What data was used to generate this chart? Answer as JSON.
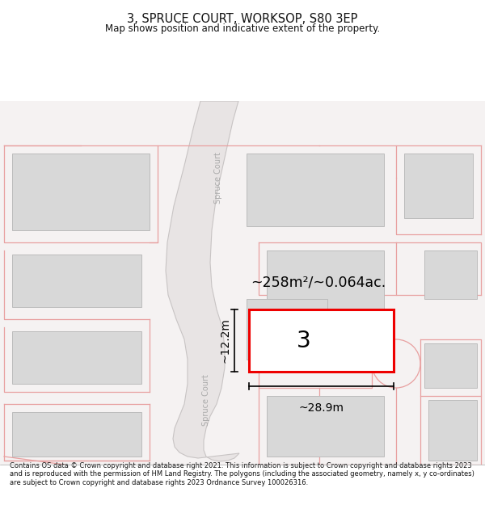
{
  "title": "3, SPRUCE COURT, WORKSOP, S80 3EP",
  "subtitle": "Map shows position and indicative extent of the property.",
  "area_label": "~258m²/~0.064ac.",
  "width_label": "~28.9m",
  "height_label": "~12.2m",
  "plot_number": "3",
  "footer_text": "Contains OS data © Crown copyright and database right 2021. This information is subject to Crown copyright and database rights 2023 and is reproduced with the permission of HM Land Registry. The polygons (including the associated geometry, namely x, y co-ordinates) are subject to Crown copyright and database rights 2023 Ordnance Survey 100026316.",
  "map_bg": "#f5f2f2",
  "building_fill": "#d8d8d8",
  "building_outline": "#bbbbbb",
  "plot_outline": "#ee0000",
  "plot_fill": "#ffffff",
  "road_fill": "#e8e4e4",
  "road_edge": "#c8c4c4",
  "road_label_color": "#aaaaaa",
  "pink_line": "#e8a0a0",
  "dim_color": "#111111",
  "title_color": "#111111",
  "footer_color": "#111111"
}
